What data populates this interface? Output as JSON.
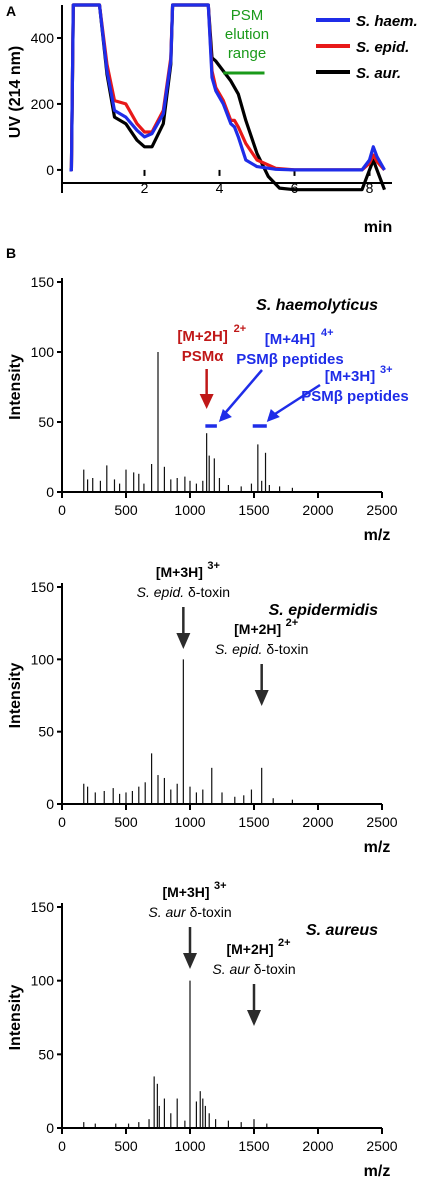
{
  "colors": {
    "s_haem": "#1f2de8",
    "s_epid": "#e81919",
    "s_aur": "#000000",
    "psm_range": "#1a9a1a",
    "psm_alpha": "#c01818",
    "psm_beta": "#1f2de8",
    "delta_toxin": "#2b2b2b"
  },
  "chart_data": [
    {
      "panel": "A",
      "type": "line",
      "ylabel": "UV (214 nm)",
      "xlabel": "min",
      "x_ticks": [
        "2",
        "4",
        "6",
        "8"
      ],
      "y_ticks": [
        "0",
        "200",
        "400"
      ],
      "xlim": [
        -0.2,
        8.6
      ],
      "ylim": [
        -70,
        500
      ],
      "legend_position": "top-right",
      "legend": [
        "S. haem.",
        "S. epid.",
        "S. aur."
      ],
      "annotation": [
        "PSM",
        "elution",
        "range"
      ],
      "psm_range": [
        4.1,
        5.2
      ],
      "series": [
        {
          "name": "S. haem.",
          "color_key": "s_haem",
          "x": [
            0,
            0.05,
            0.1,
            0.8,
            1.0,
            1.2,
            1.5,
            1.8,
            2.0,
            2.2,
            2.5,
            2.7,
            2.75,
            3.7,
            3.8,
            3.9,
            4.1,
            4.3,
            4.4,
            4.5,
            4.7,
            5.0,
            5.5,
            6.0,
            7.0,
            7.8,
            8.0,
            8.1,
            8.2,
            8.4
          ],
          "y": [
            0,
            0,
            500,
            500,
            300,
            180,
            160,
            120,
            100,
            110,
            170,
            330,
            500,
            500,
            280,
            240,
            200,
            140,
            130,
            100,
            30,
            10,
            2,
            0,
            0,
            0,
            30,
            70,
            40,
            0
          ]
        },
        {
          "name": "S. epid.",
          "color_key": "s_epid",
          "x": [
            0,
            0.05,
            0.1,
            0.8,
            1.0,
            1.2,
            1.5,
            1.8,
            2.0,
            2.2,
            2.5,
            2.7,
            2.75,
            3.7,
            3.8,
            3.9,
            4.1,
            4.3,
            4.4,
            4.5,
            4.7,
            5.0,
            5.5,
            6.0,
            7.0,
            7.8,
            8.0,
            8.1,
            8.2,
            8.4
          ],
          "y": [
            0,
            0,
            500,
            500,
            320,
            210,
            200,
            140,
            115,
            115,
            180,
            340,
            500,
            500,
            300,
            250,
            210,
            150,
            150,
            130,
            80,
            30,
            5,
            0,
            0,
            0,
            20,
            45,
            25,
            0
          ]
        },
        {
          "name": "S. aur.",
          "color_key": "s_aur",
          "x": [
            0,
            0.05,
            0.1,
            0.8,
            1.0,
            1.2,
            1.5,
            1.8,
            2.0,
            2.2,
            2.5,
            2.7,
            2.75,
            3.7,
            3.8,
            3.9,
            4.1,
            4.3,
            4.5,
            4.7,
            5.0,
            5.3,
            5.6,
            6.0,
            7.0,
            7.8,
            8.0,
            8.1,
            8.2,
            8.4
          ],
          "y": [
            0,
            0,
            500,
            500,
            290,
            160,
            140,
            90,
            70,
            70,
            140,
            320,
            500,
            500,
            340,
            330,
            300,
            270,
            230,
            150,
            50,
            -20,
            -55,
            -60,
            -60,
            -60,
            0,
            30,
            0,
            -60
          ]
        }
      ]
    },
    {
      "panel": "B",
      "type": "bar",
      "title": "S. haemolyticus",
      "ylabel": "Intensity",
      "xlabel": "m/z",
      "x_ticks": [
        "0",
        "500",
        "1000",
        "1500",
        "2000",
        "2500"
      ],
      "y_ticks": [
        "0",
        "50",
        "100",
        "150"
      ],
      "xlim": [
        0,
        2500
      ],
      "ylim": [
        0,
        150
      ],
      "peaks_mz": [
        170,
        200,
        240,
        300,
        350,
        410,
        450,
        500,
        560,
        600,
        640,
        700,
        750,
        800,
        850,
        900,
        960,
        1000,
        1050,
        1100,
        1130,
        1150,
        1190,
        1230,
        1300,
        1400,
        1480,
        1530,
        1560,
        1590,
        1620,
        1700,
        1800
      ],
      "peaks_intensity": [
        16,
        9,
        10,
        8,
        19,
        9,
        6,
        16,
        14,
        13,
        6,
        20,
        100,
        18,
        9,
        10,
        11,
        8,
        6,
        8,
        42,
        26,
        24,
        10,
        5,
        4,
        6,
        34,
        8,
        28,
        5,
        4,
        3
      ],
      "annotations": [
        {
          "text": "[M+2H]",
          "sup": "2+",
          "line2": "PSMα",
          "color_key": "psm_alpha",
          "mz": 1130,
          "arrow": "down"
        },
        {
          "text": "[M+4H]",
          "sup": "4+",
          "line2": "PSMβ peptides",
          "color_key": "psm_beta",
          "bar_mz": [
            1120,
            1210
          ]
        },
        {
          "text": "[M+3H]",
          "sup": "3+",
          "line2": "PSMβ peptides",
          "color_key": "psm_beta",
          "bar_mz": [
            1490,
            1600
          ]
        }
      ]
    },
    {
      "type": "bar",
      "title": "S. epidermidis",
      "ylabel": "Intensity",
      "xlabel": "m/z",
      "x_ticks": [
        "0",
        "500",
        "1000",
        "1500",
        "2000",
        "2500"
      ],
      "y_ticks": [
        "0",
        "50",
        "100",
        "150"
      ],
      "xlim": [
        0,
        2500
      ],
      "ylim": [
        0,
        150
      ],
      "peaks_mz": [
        170,
        200,
        260,
        330,
        400,
        450,
        500,
        550,
        600,
        650,
        700,
        750,
        800,
        850,
        900,
        948,
        1000,
        1050,
        1100,
        1170,
        1250,
        1350,
        1420,
        1480,
        1560,
        1650,
        1800
      ],
      "peaks_intensity": [
        14,
        12,
        8,
        9,
        11,
        7,
        8,
        9,
        12,
        15,
        35,
        20,
        18,
        10,
        14,
        100,
        12,
        8,
        10,
        25,
        8,
        5,
        6,
        10,
        25,
        4,
        3
      ],
      "annotations": [
        {
          "text": "[M+3H]",
          "sup": "3+",
          "line2a": "S. epid.",
          "line2b": " δ-toxin",
          "color_key": "delta_toxin",
          "mz": 948
        },
        {
          "text": "[M+2H]",
          "sup": "2+",
          "line2a": "S. epid.",
          "line2b": " δ-toxin",
          "color_key": "delta_toxin",
          "mz": 1560
        }
      ]
    },
    {
      "type": "bar",
      "title": "S. aureus",
      "ylabel": "Intensity",
      "xlabel": "m/z",
      "x_ticks": [
        "0",
        "500",
        "1000",
        "1500",
        "2000",
        "2500"
      ],
      "y_ticks": [
        "0",
        "50",
        "100",
        "150"
      ],
      "xlim": [
        0,
        2500
      ],
      "ylim": [
        0,
        150
      ],
      "peaks_mz": [
        170,
        260,
        420,
        520,
        600,
        680,
        720,
        745,
        760,
        800,
        850,
        900,
        960,
        1000,
        1050,
        1080,
        1100,
        1120,
        1150,
        1200,
        1300,
        1400,
        1500,
        1600
      ],
      "peaks_intensity": [
        4,
        3,
        3,
        3,
        4,
        6,
        35,
        30,
        15,
        20,
        10,
        20,
        5,
        100,
        18,
        25,
        20,
        15,
        10,
        6,
        5,
        4,
        6,
        3
      ],
      "annotations": [
        {
          "text": "[M+3H]",
          "sup": "3+",
          "line2a": "S. aur",
          "line2b": " δ-toxin",
          "color_key": "delta_toxin",
          "mz": 1000
        },
        {
          "text": "[M+2H]",
          "sup": "2+",
          "line2a": "S. aur",
          "line2b": " δ-toxin",
          "color_key": "delta_toxin",
          "mz": 1500
        }
      ]
    }
  ],
  "panel_labels": [
    "A",
    "B"
  ]
}
